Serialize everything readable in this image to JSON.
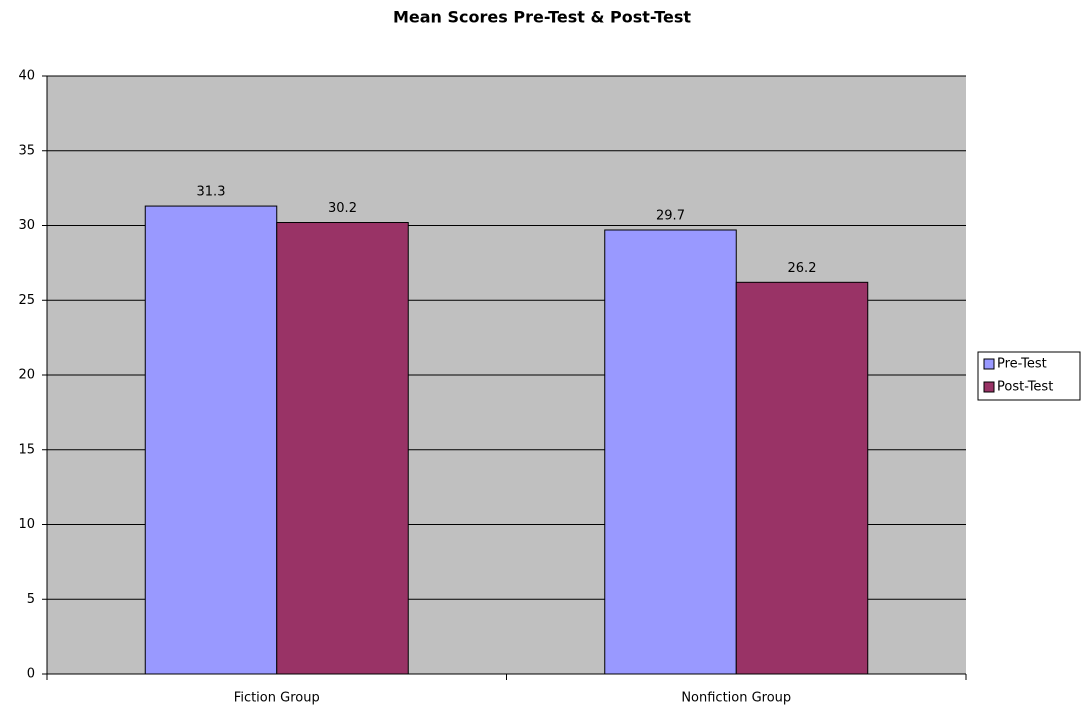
{
  "chart_data": {
    "type": "bar",
    "title": "Mean Scores Pre-Test & Post-Test",
    "categories": [
      "Fiction Group",
      "Nonfiction Group"
    ],
    "series": [
      {
        "name": "Pre-Test",
        "color": "#9999ff",
        "values": [
          31.3,
          29.7
        ]
      },
      {
        "name": "Post-Test",
        "color": "#993366",
        "values": [
          30.2,
          26.2
        ]
      }
    ],
    "ylim": [
      0,
      40
    ],
    "yticks": [
      0,
      5,
      10,
      15,
      20,
      25,
      30,
      35,
      40
    ],
    "grid": true,
    "legend": "right"
  }
}
